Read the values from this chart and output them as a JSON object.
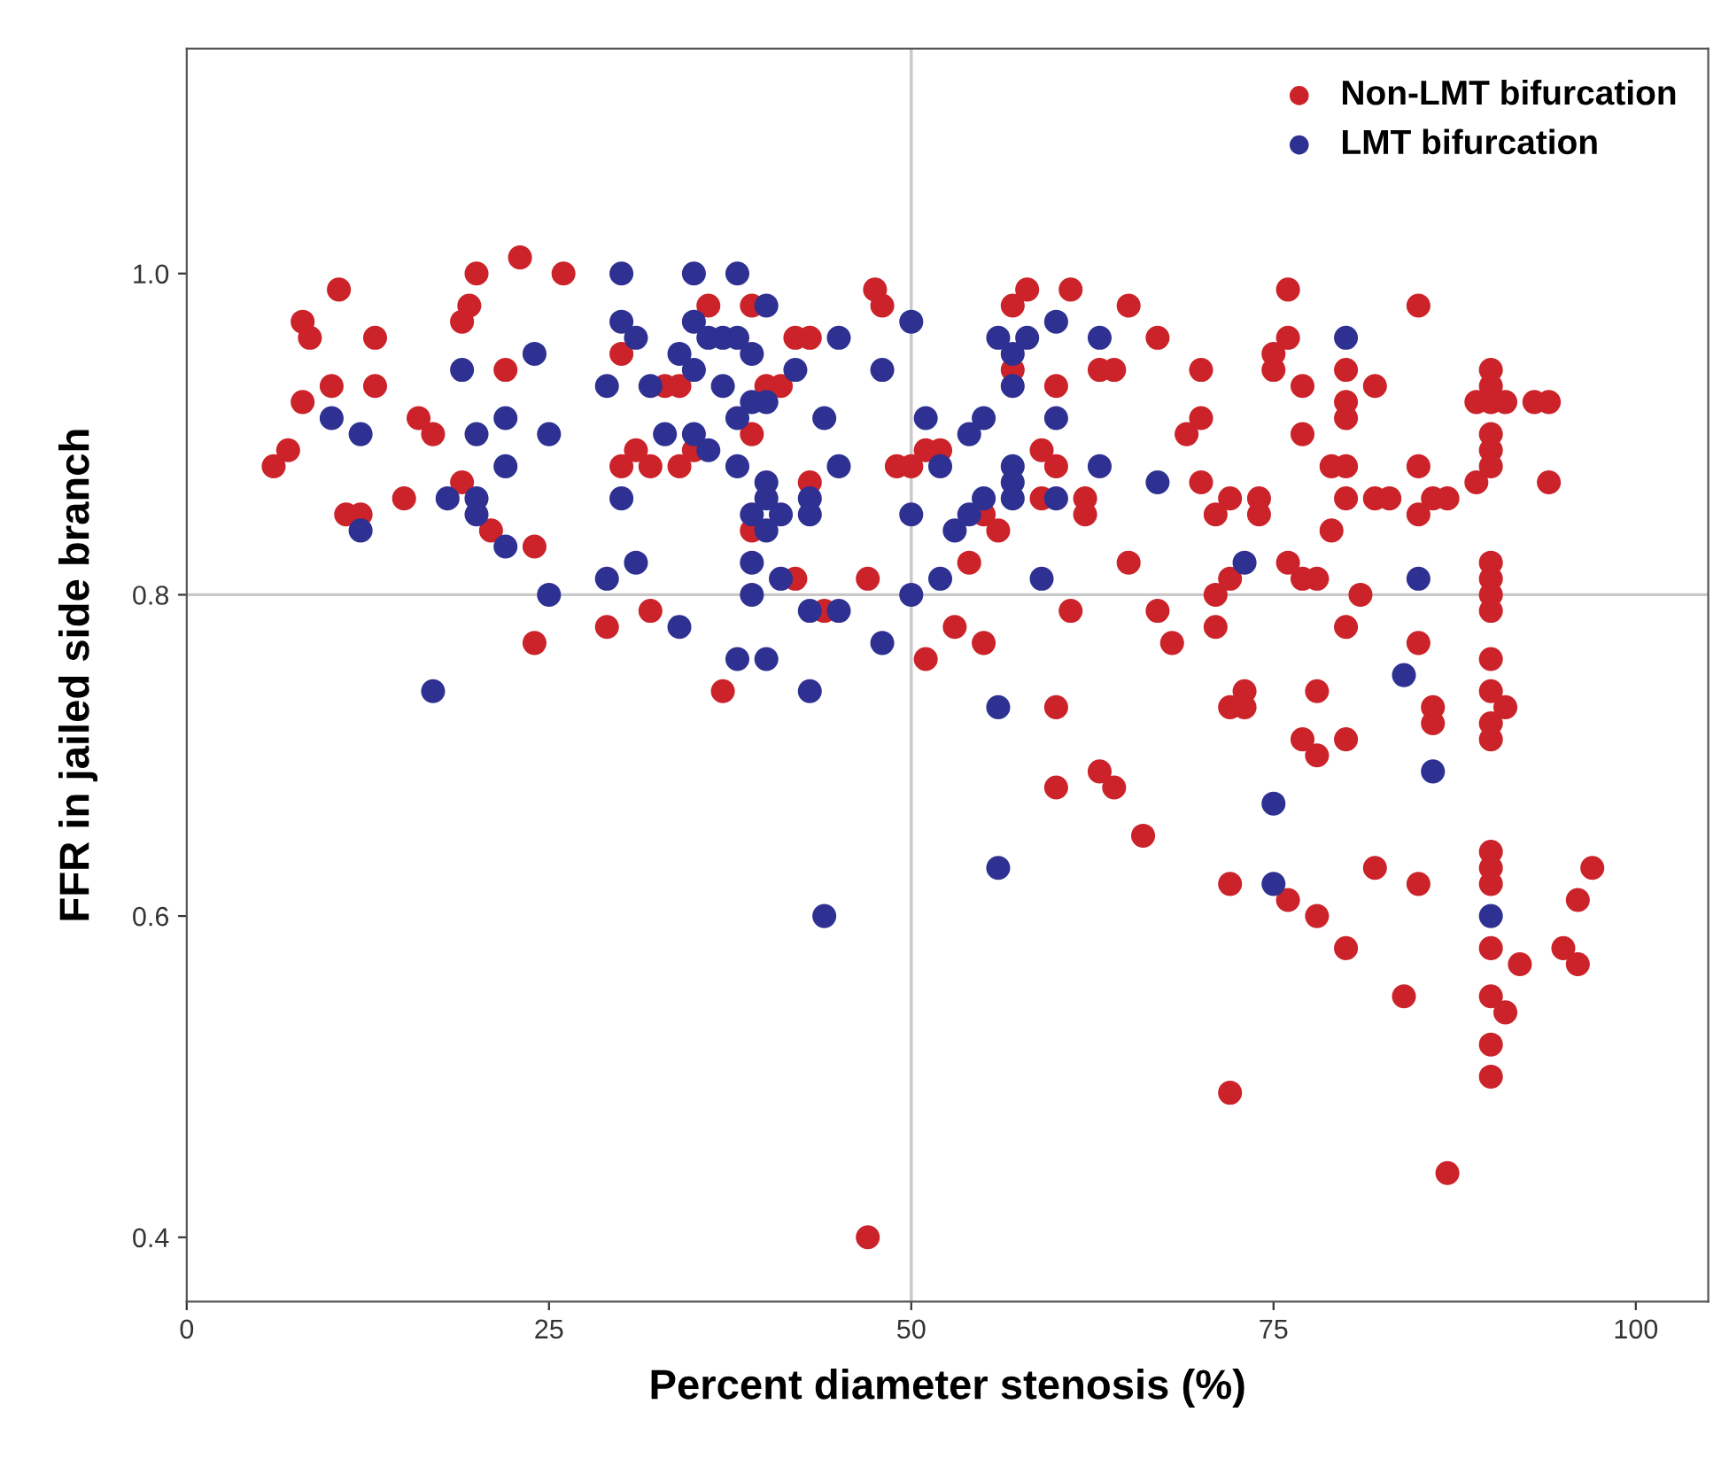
{
  "chart_data": {
    "type": "scatter",
    "xlabel": "Percent diameter stenosis (%)",
    "ylabel": "FFR in jailed side branch",
    "xlim": [
      0,
      105
    ],
    "ylim": [
      0.36,
      1.14
    ],
    "xticks": [
      0,
      25,
      50,
      75,
      100
    ],
    "yticks": [
      0.4,
      0.6,
      0.8,
      {
        "value": 1.0,
        "label": "1.0"
      }
    ],
    "grid": false,
    "legend": "top right",
    "marker": "circle",
    "ref_lines": [
      {
        "axis": "x",
        "value": 50,
        "label": null,
        "color": "#c8c8c8"
      },
      {
        "axis": "y",
        "value": 0.8,
        "label": null,
        "color": "#c8c8c8"
      }
    ],
    "series": [
      {
        "name": "Non-LMT bifurcation",
        "color": "#cc2229",
        "x": [
          6,
          7,
          8,
          8.5,
          8,
          10,
          10.5,
          11,
          12,
          13,
          13,
          15,
          16,
          17,
          19,
          19.5,
          20,
          19,
          21,
          22,
          23,
          24,
          24,
          26,
          29,
          30,
          30,
          31,
          32,
          32,
          33,
          34,
          34,
          35,
          36,
          37,
          39,
          39,
          39,
          40,
          41,
          42,
          42,
          43,
          43,
          44,
          47,
          47,
          47.5,
          48,
          49,
          50,
          51,
          51,
          52,
          53,
          54,
          55,
          55,
          56,
          57,
          57,
          58,
          59,
          59,
          60,
          60,
          60,
          60,
          61,
          61,
          62,
          62,
          63,
          63,
          64,
          64,
          65,
          65,
          66,
          67,
          67,
          68,
          69,
          70,
          70,
          70,
          71,
          71,
          71,
          72,
          72,
          72,
          72,
          72,
          73,
          73,
          74,
          74,
          75,
          75,
          76,
          76,
          76,
          76,
          77,
          77,
          77,
          77,
          78,
          78,
          78,
          78,
          79,
          79,
          80,
          80,
          80,
          80,
          80,
          80,
          80,
          80,
          81,
          82,
          82,
          82,
          83,
          84,
          85,
          85,
          85,
          85,
          85,
          86,
          86,
          86,
          87,
          87,
          89,
          89,
          90,
          90,
          90,
          90,
          90,
          90,
          90,
          90,
          90,
          90,
          90,
          90,
          90,
          90,
          90,
          90,
          90,
          90,
          90,
          90,
          90,
          91,
          91,
          91,
          92,
          93,
          94,
          94,
          95,
          96,
          96,
          97
        ],
        "values": [
          0.88,
          0.89,
          0.97,
          0.96,
          0.92,
          0.93,
          0.99,
          0.85,
          0.85,
          0.96,
          0.93,
          0.86,
          0.91,
          0.9,
          0.97,
          0.98,
          1.0,
          0.87,
          0.84,
          0.94,
          1.01,
          0.83,
          0.77,
          1.0,
          0.78,
          0.88,
          0.95,
          0.89,
          0.88,
          0.79,
          0.93,
          0.88,
          0.93,
          0.89,
          0.98,
          0.74,
          0.98,
          0.9,
          0.84,
          0.93,
          0.93,
          0.81,
          0.96,
          0.87,
          0.96,
          0.79,
          0.4,
          0.81,
          0.99,
          0.98,
          0.88,
          0.88,
          0.89,
          0.76,
          0.89,
          0.78,
          0.82,
          0.77,
          0.85,
          0.84,
          0.98,
          0.94,
          0.99,
          0.89,
          0.86,
          0.93,
          0.88,
          0.73,
          0.68,
          0.99,
          0.79,
          0.86,
          0.85,
          0.94,
          0.69,
          0.68,
          0.94,
          0.82,
          0.98,
          0.65,
          0.96,
          0.79,
          0.77,
          0.9,
          0.94,
          0.91,
          0.87,
          0.85,
          0.8,
          0.78,
          0.86,
          0.81,
          0.73,
          0.62,
          0.49,
          0.74,
          0.73,
          0.85,
          0.86,
          0.94,
          0.95,
          0.99,
          0.96,
          0.82,
          0.61,
          0.93,
          0.9,
          0.81,
          0.71,
          0.74,
          0.7,
          0.81,
          0.6,
          0.88,
          0.84,
          0.94,
          0.92,
          0.91,
          0.88,
          0.86,
          0.78,
          0.71,
          0.58,
          0.8,
          0.93,
          0.86,
          0.63,
          0.86,
          0.55,
          0.98,
          0.88,
          0.85,
          0.77,
          0.62,
          0.86,
          0.73,
          0.72,
          0.86,
          0.44,
          0.87,
          0.92,
          0.94,
          0.93,
          0.92,
          0.9,
          0.89,
          0.88,
          0.82,
          0.81,
          0.8,
          0.79,
          0.76,
          0.74,
          0.72,
          0.71,
          0.64,
          0.63,
          0.62,
          0.58,
          0.55,
          0.52,
          0.5,
          0.73,
          0.54,
          0.92,
          0.57,
          0.92,
          0.92,
          0.87,
          0.58,
          0.61,
          0.57,
          0.63
        ]
      },
      {
        "name": "LMT bifurcation",
        "color": "#2e3192",
        "x": [
          10,
          12,
          12,
          17,
          18,
          19,
          20,
          20,
          20,
          22,
          22,
          22,
          24,
          25,
          25,
          29,
          29,
          30,
          30,
          30,
          31,
          31,
          32,
          33,
          34,
          34,
          35,
          35,
          35,
          35,
          36,
          36,
          37,
          37,
          38,
          38,
          38,
          38,
          38,
          39,
          39,
          39,
          39,
          39,
          40,
          40,
          40,
          40,
          40,
          40,
          41,
          41,
          42,
          43,
          43,
          43,
          43,
          44,
          44,
          45,
          45,
          45,
          48,
          48,
          50,
          50,
          50,
          51,
          52,
          52,
          53,
          54,
          54,
          55,
          55,
          56,
          56,
          56,
          57,
          57,
          57,
          57,
          57,
          58,
          59,
          60,
          60,
          60,
          63,
          63,
          67,
          73,
          75,
          75,
          80,
          84,
          85,
          86,
          90
        ],
        "values": [
          0.91,
          0.9,
          0.84,
          0.74,
          0.86,
          0.94,
          0.9,
          0.86,
          0.85,
          0.91,
          0.88,
          0.83,
          0.95,
          0.9,
          0.8,
          0.93,
          0.81,
          1.0,
          0.97,
          0.86,
          0.96,
          0.82,
          0.93,
          0.9,
          0.95,
          0.78,
          0.97,
          1.0,
          0.94,
          0.9,
          0.96,
          0.89,
          0.96,
          0.93,
          1.0,
          0.96,
          0.91,
          0.88,
          0.76,
          0.95,
          0.92,
          0.85,
          0.82,
          0.8,
          0.98,
          0.92,
          0.87,
          0.86,
          0.84,
          0.76,
          0.85,
          0.81,
          0.94,
          0.86,
          0.85,
          0.79,
          0.74,
          0.91,
          0.6,
          0.96,
          0.88,
          0.79,
          0.94,
          0.77,
          0.97,
          0.85,
          0.8,
          0.91,
          0.88,
          0.81,
          0.84,
          0.85,
          0.9,
          0.91,
          0.86,
          0.96,
          0.73,
          0.63,
          0.95,
          0.93,
          0.88,
          0.87,
          0.86,
          0.96,
          0.81,
          0.97,
          0.91,
          0.86,
          0.96,
          0.88,
          0.87,
          0.82,
          0.67,
          0.62,
          0.96,
          0.75,
          0.81,
          0.69,
          0.6
        ]
      }
    ]
  }
}
